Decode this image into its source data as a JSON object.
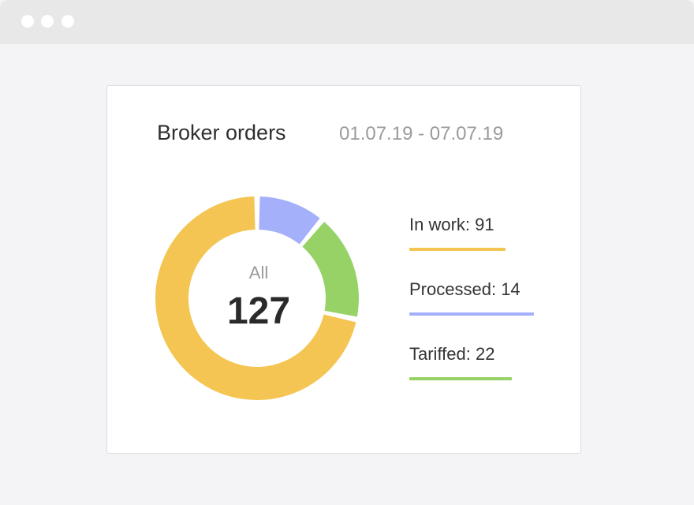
{
  "window": {
    "controls": [
      "dot",
      "dot",
      "dot"
    ]
  },
  "card": {
    "title": "Broker orders",
    "date_range": "01.07.19 - 07.07.19",
    "center": {
      "label": "All",
      "value": "127"
    },
    "legend": [
      {
        "label": "In work",
        "value": "91",
        "color": "#f4c552"
      },
      {
        "label": "Processed",
        "value": "14",
        "color": "#a5b0fb"
      },
      {
        "label": "Tariffed",
        "value": "22",
        "color": "#96d266"
      }
    ]
  },
  "chart_data": {
    "type": "pie",
    "title": "Broker orders",
    "subtitle": "01.07.19 - 07.07.19",
    "donut": true,
    "total_label": "All",
    "total": 127,
    "slices": [
      {
        "name": "Processed",
        "value": 14,
        "color": "#a5b0fb"
      },
      {
        "name": "Tariffed",
        "value": 22,
        "color": "#96d266"
      },
      {
        "name": "In work",
        "value": 91,
        "color": "#f4c552"
      }
    ]
  }
}
